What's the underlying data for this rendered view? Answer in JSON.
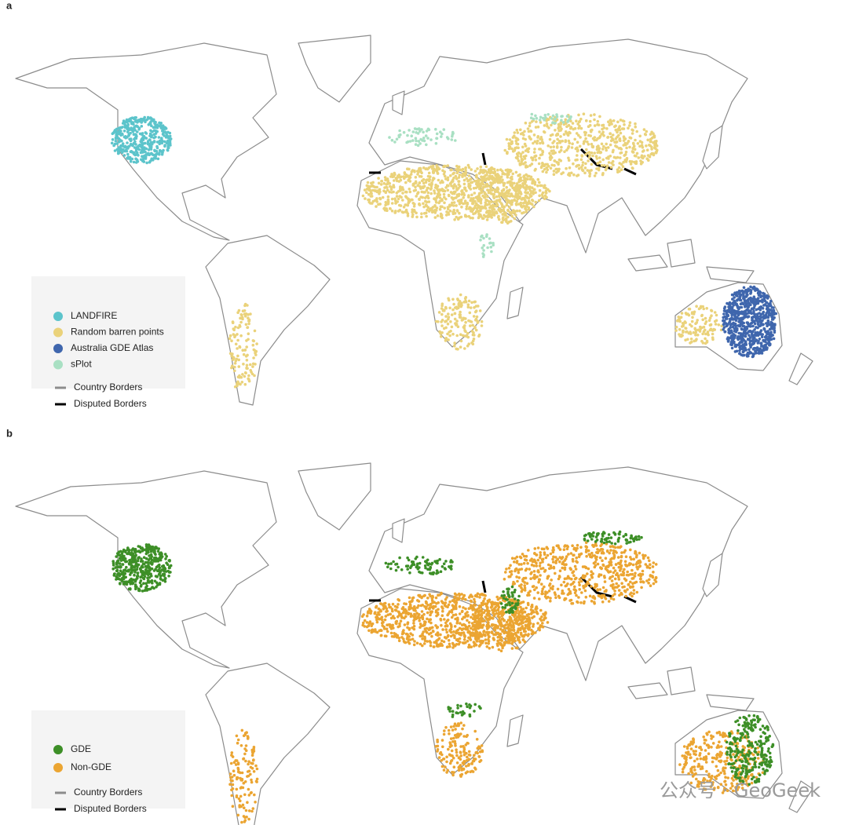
{
  "panels": [
    {
      "label": "a",
      "legend": [
        {
          "label": "LANDFIRE",
          "color": "#5cc4cb"
        },
        {
          "label": "Random barren points",
          "color": "#ead27a"
        },
        {
          "label": "Australia GDE Atlas",
          "color": "#3f66ad"
        },
        {
          "label": "sPlot",
          "color": "#a9e0c3"
        }
      ],
      "borders": [
        {
          "label": "Country Borders",
          "color": "#8c8c8c"
        },
        {
          "label": "Disputed Borders",
          "color": "#000000"
        }
      ]
    },
    {
      "label": "b",
      "legend": [
        {
          "label": "GDE",
          "color": "#3d8f27"
        },
        {
          "label": "Non-GDE",
          "color": "#eba532"
        }
      ],
      "borders": [
        {
          "label": "Country Borders",
          "color": "#8c8c8c"
        },
        {
          "label": "Disputed Borders",
          "color": "#000000"
        }
      ]
    }
  ],
  "watermark": "公众号 · GeoGeek"
}
